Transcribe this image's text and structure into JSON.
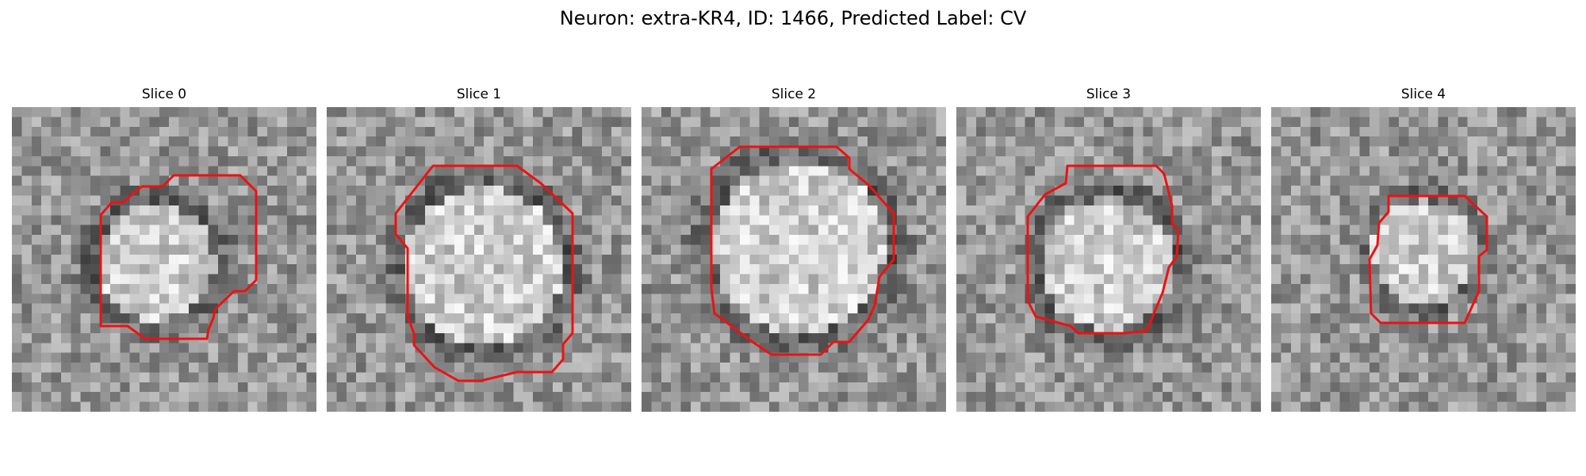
{
  "figure": {
    "suptitle": "Neuron: extra-KR4, ID: 1466, Predicted Label: CV"
  },
  "panels": [
    {
      "title": "Slice 0"
    },
    {
      "title": "Slice 1"
    },
    {
      "title": "Slice 2"
    },
    {
      "title": "Slice 3"
    },
    {
      "title": "Slice 4"
    }
  ],
  "colors": {
    "contour": "#ee1111",
    "background": "#ffffff",
    "colormap": "grayscale"
  }
}
